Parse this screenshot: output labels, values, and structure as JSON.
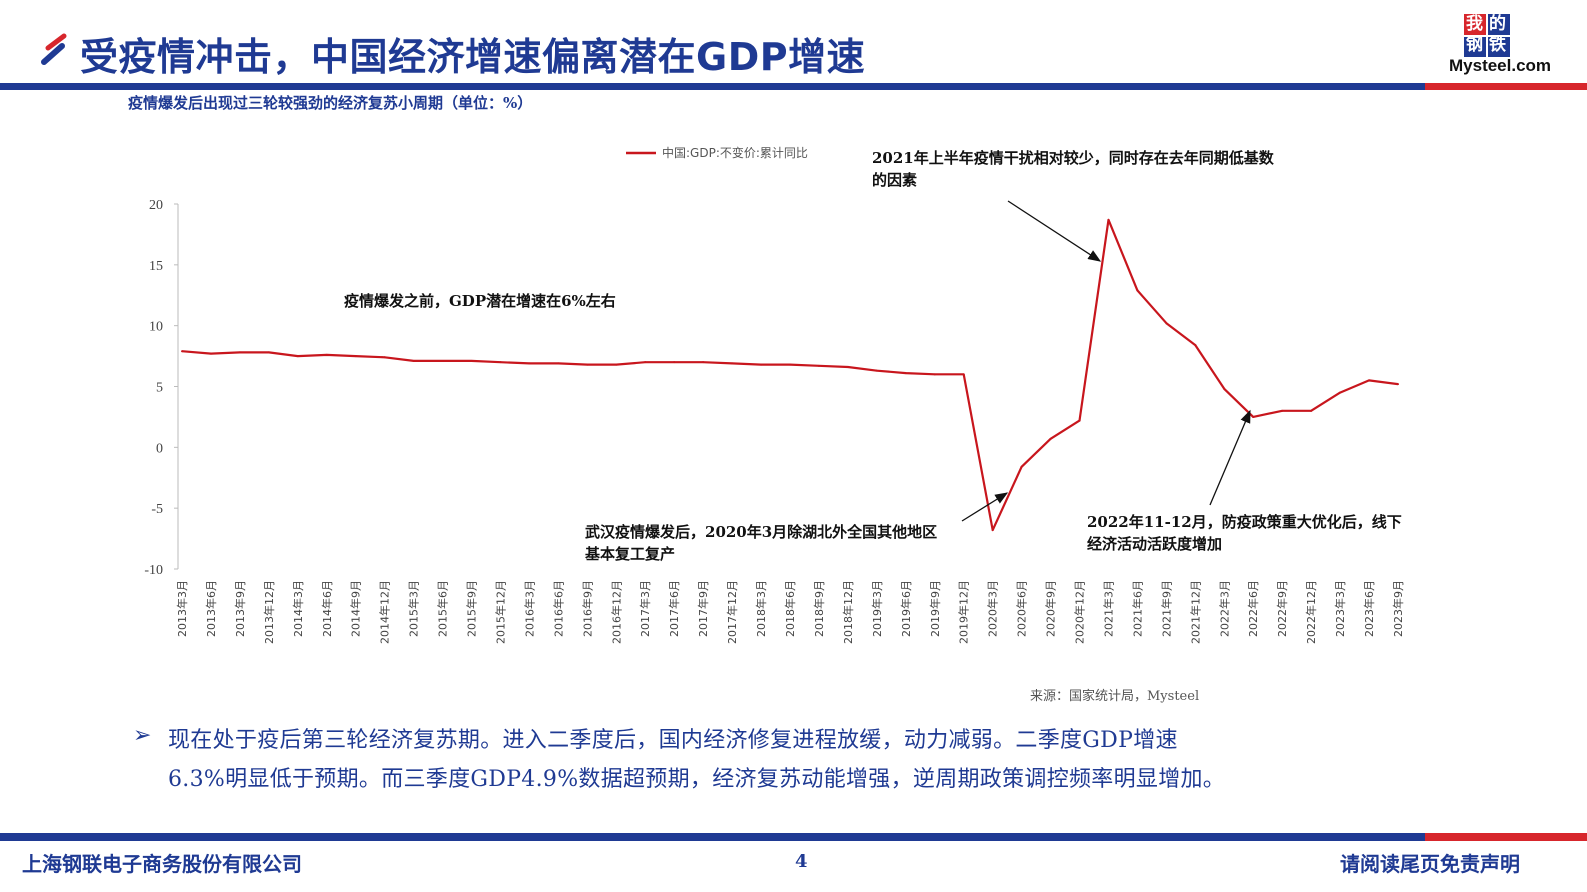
{
  "header": {
    "title": "受疫情冲击，中国经济增速偏离潜在GDP增速",
    "logo_top_line1": "我的",
    "logo_top_line2": "钢铁",
    "logo_text": "Mysteel.com"
  },
  "subtitle": "疫情爆发后出现过三轮较强劲的经济复苏小周期（单位：%）",
  "colors": {
    "accent_blue": "#1f3a93",
    "accent_red": "#d7262c",
    "series_red": "#c8161d"
  },
  "chart_data": {
    "type": "line",
    "title": "",
    "xlabel": "",
    "ylabel": "",
    "ylim": [
      -10,
      20
    ],
    "yticks": [
      "20",
      "15",
      "10",
      "5",
      "0",
      "-5",
      "-10"
    ],
    "grid": false,
    "legend_position": "top-center",
    "categories": [
      "2013年3月",
      "2013年6月",
      "2013年9月",
      "2013年12月",
      "2014年3月",
      "2014年6月",
      "2014年9月",
      "2014年12月",
      "2015年3月",
      "2015年6月",
      "2015年9月",
      "2015年12月",
      "2016年3月",
      "2016年6月",
      "2016年9月",
      "2016年12月",
      "2017年3月",
      "2017年6月",
      "2017年9月",
      "2017年12月",
      "2018年3月",
      "2018年6月",
      "2018年9月",
      "2018年12月",
      "2019年3月",
      "2019年6月",
      "2019年9月",
      "2019年12月",
      "2020年3月",
      "2020年6月",
      "2020年9月",
      "2020年12月",
      "2021年3月",
      "2021年6月",
      "2021年9月",
      "2021年12月",
      "2022年3月",
      "2022年6月",
      "2022年9月",
      "2022年12月",
      "2023年3月",
      "2023年6月",
      "2023年9月"
    ],
    "series": [
      {
        "name": "中国:GDP:不变价:累计同比",
        "color": "#c8161d",
        "values": [
          7.9,
          7.7,
          7.8,
          7.8,
          7.5,
          7.6,
          7.5,
          7.4,
          7.1,
          7.1,
          7.1,
          7.0,
          6.9,
          6.9,
          6.8,
          6.8,
          7.0,
          7.0,
          7.0,
          6.9,
          6.8,
          6.8,
          6.7,
          6.6,
          6.3,
          6.1,
          6.0,
          6.0,
          -6.8,
          -1.6,
          0.7,
          2.2,
          18.7,
          12.9,
          10.2,
          8.4,
          4.8,
          2.5,
          3.0,
          3.0,
          4.5,
          5.5,
          5.2
        ]
      }
    ],
    "annotations": [
      {
        "lines": [
          "疫情爆发之前，GDP潜在增速在6%左右"
        ]
      },
      {
        "lines": [
          "2021年上半年疫情干扰相对较少，同时存在去年同期低基数",
          "的因素"
        ]
      },
      {
        "lines": [
          "武汉疫情爆发后，2020年3月除湖北外全国其他地区",
          "基本复工复产"
        ]
      },
      {
        "lines": [
          "2022年11-12月，防疫政策重大优化后，线下",
          "经济活动活跃度增加"
        ]
      }
    ],
    "source": "来源：国家统计局，Mysteel"
  },
  "body": {
    "bullet": "➢",
    "line1": "现在处于疫后第三轮经济复苏期。进入二季度后，国内经济修复进程放缓，动力减弱。二季度GDP增速",
    "line2": "6.3%明显低于预期。而三季度GDP4.9%数据超预期，经济复苏动能增强，逆周期政策调控频率明显增加。"
  },
  "footer": {
    "company": "上海钢联电子商务股份有限公司",
    "page": "4",
    "disclaimer": "请阅读尾页免责声明"
  }
}
